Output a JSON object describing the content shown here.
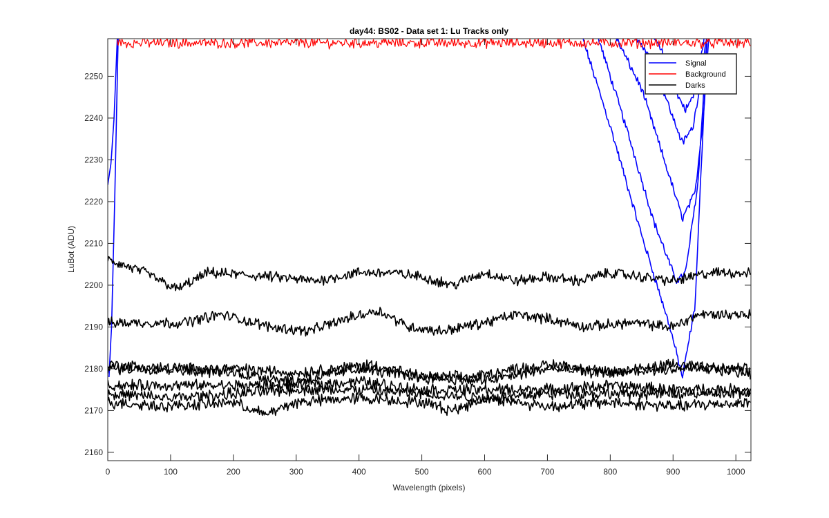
{
  "chart_data": {
    "type": "line",
    "title": "day44: BS02 - Data set 1: Lu Tracks only",
    "xlabel": "Wavelength (pixels)",
    "ylabel": "LuBot (ADU)",
    "xlim": [
      0,
      1024
    ],
    "ylim": [
      2158,
      2259
    ],
    "xticks": [
      0,
      100,
      200,
      300,
      400,
      500,
      600,
      700,
      800,
      900,
      1000
    ],
    "yticks": [
      2160,
      2170,
      2180,
      2190,
      2200,
      2210,
      2220,
      2230,
      2240,
      2250
    ],
    "grid": false,
    "legend_position": "top-right",
    "legend": [
      {
        "name": "Signal",
        "color": "#0000ff"
      },
      {
        "name": "Background",
        "color": "#ff0000"
      },
      {
        "name": "Darks",
        "color": "#000000"
      }
    ],
    "series": [
      {
        "group": "Signal",
        "color": "#0000ff",
        "shape": "spike",
        "points": [
          [
            0,
            2224
          ],
          [
            5,
            2229
          ],
          [
            10,
            2240
          ],
          [
            16,
            2262
          ]
        ]
      },
      {
        "group": "Signal",
        "color": "#0000ff",
        "shape": "spike",
        "points": [
          [
            2,
            2178
          ],
          [
            6,
            2190
          ],
          [
            11,
            2220
          ],
          [
            17,
            2262
          ]
        ]
      },
      {
        "group": "Signal",
        "color": "#0000ff",
        "shape": "valley",
        "points": [
          [
            750,
            2262
          ],
          [
            800,
            2238
          ],
          [
            850,
            2212
          ],
          [
            895,
            2190
          ],
          [
            915,
            2178
          ],
          [
            935,
            2195
          ],
          [
            955,
            2262
          ]
        ]
      },
      {
        "group": "Signal",
        "color": "#0000ff",
        "shape": "valley",
        "points": [
          [
            775,
            2262
          ],
          [
            825,
            2238
          ],
          [
            870,
            2215
          ],
          [
            905,
            2201
          ],
          [
            920,
            2203
          ],
          [
            940,
            2225
          ],
          [
            955,
            2262
          ]
        ]
      },
      {
        "group": "Signal",
        "color": "#0000ff",
        "shape": "valley",
        "points": [
          [
            800,
            2262
          ],
          [
            850,
            2247
          ],
          [
            890,
            2228
          ],
          [
            915,
            2216
          ],
          [
            935,
            2222
          ],
          [
            948,
            2240
          ],
          [
            958,
            2262
          ]
        ]
      },
      {
        "group": "Signal",
        "color": "#0000ff",
        "shape": "valley",
        "points": [
          [
            830,
            2262
          ],
          [
            870,
            2253
          ],
          [
            900,
            2240
          ],
          [
            915,
            2234
          ],
          [
            932,
            2238
          ],
          [
            945,
            2250
          ],
          [
            955,
            2262
          ]
        ]
      },
      {
        "group": "Signal",
        "color": "#0000ff",
        "shape": "valley",
        "points": [
          [
            860,
            2262
          ],
          [
            885,
            2255
          ],
          [
            905,
            2246
          ],
          [
            920,
            2242
          ],
          [
            935,
            2246
          ],
          [
            945,
            2255
          ],
          [
            952,
            2262
          ]
        ]
      },
      {
        "group": "Background",
        "color": "#ff0000",
        "shape": "flat",
        "points": [
          [
            15,
            2258
          ],
          [
            1024,
            2258
          ]
        ],
        "noise": 1.0
      },
      {
        "group": "Darks",
        "color": "#000000",
        "shape": "flat",
        "points": [
          [
            0,
            2206
          ],
          [
            60,
            2203
          ],
          [
            110,
            2199
          ],
          [
            160,
            2203
          ],
          [
            260,
            2202
          ],
          [
            330,
            2201
          ],
          [
            400,
            2203
          ],
          [
            450,
            2203
          ],
          [
            500,
            2202
          ],
          [
            550,
            2200
          ],
          [
            600,
            2203
          ],
          [
            650,
            2201
          ],
          [
            700,
            2202
          ],
          [
            750,
            2201
          ],
          [
            800,
            2203
          ],
          [
            900,
            2201
          ],
          [
            960,
            2203
          ],
          [
            1024,
            2203
          ]
        ],
        "noise": 1.0
      },
      {
        "group": "Darks",
        "color": "#000000",
        "shape": "flat",
        "points": [
          [
            0,
            2191
          ],
          [
            60,
            2191
          ],
          [
            120,
            2191
          ],
          [
            180,
            2193
          ],
          [
            260,
            2190
          ],
          [
            320,
            2189
          ],
          [
            380,
            2192
          ],
          [
            430,
            2194
          ],
          [
            480,
            2190
          ],
          [
            530,
            2189
          ],
          [
            600,
            2191
          ],
          [
            650,
            2193
          ],
          [
            700,
            2192
          ],
          [
            760,
            2190
          ],
          [
            830,
            2191
          ],
          [
            900,
            2190
          ],
          [
            940,
            2193
          ],
          [
            1024,
            2193
          ]
        ],
        "noise": 1.0
      },
      {
        "group": "Darks",
        "color": "#000000",
        "shape": "flat",
        "points": [
          [
            0,
            2181
          ],
          [
            100,
            2180
          ],
          [
            200,
            2180
          ],
          [
            300,
            2179
          ],
          [
            420,
            2181
          ],
          [
            500,
            2178
          ],
          [
            580,
            2178
          ],
          [
            650,
            2180
          ],
          [
            720,
            2181
          ],
          [
            800,
            2179
          ],
          [
            900,
            2180
          ],
          [
            1024,
            2180
          ]
        ],
        "noise": 1.1
      },
      {
        "group": "Darks",
        "color": "#000000",
        "shape": "flat",
        "points": [
          [
            0,
            2180
          ],
          [
            100,
            2180
          ],
          [
            200,
            2179
          ],
          [
            300,
            2177
          ],
          [
            400,
            2180
          ],
          [
            500,
            2178
          ],
          [
            600,
            2177
          ],
          [
            700,
            2180
          ],
          [
            800,
            2179
          ],
          [
            900,
            2181
          ],
          [
            1024,
            2179
          ]
        ],
        "noise": 1.1
      },
      {
        "group": "Darks",
        "color": "#000000",
        "shape": "flat",
        "points": [
          [
            0,
            2176
          ],
          [
            100,
            2176
          ],
          [
            200,
            2176
          ],
          [
            300,
            2176
          ],
          [
            400,
            2177
          ],
          [
            500,
            2175
          ],
          [
            600,
            2175
          ],
          [
            700,
            2175
          ],
          [
            800,
            2176
          ],
          [
            900,
            2175
          ],
          [
            1024,
            2175
          ]
        ],
        "noise": 1.1
      },
      {
        "group": "Darks",
        "color": "#000000",
        "shape": "flat",
        "points": [
          [
            0,
            2174
          ],
          [
            100,
            2173
          ],
          [
            200,
            2174
          ],
          [
            300,
            2175
          ],
          [
            400,
            2175
          ],
          [
            500,
            2174
          ],
          [
            600,
            2173
          ],
          [
            700,
            2174
          ],
          [
            800,
            2174
          ],
          [
            900,
            2174
          ],
          [
            1024,
            2174
          ]
        ],
        "noise": 1.1
      },
      {
        "group": "Darks",
        "color": "#000000",
        "shape": "flat",
        "points": [
          [
            0,
            2172
          ],
          [
            100,
            2171
          ],
          [
            200,
            2172
          ],
          [
            250,
            2169
          ],
          [
            300,
            2172
          ],
          [
            400,
            2173
          ],
          [
            500,
            2172
          ],
          [
            550,
            2170
          ],
          [
            600,
            2173
          ],
          [
            700,
            2171
          ],
          [
            800,
            2172
          ],
          [
            900,
            2171
          ],
          [
            1024,
            2172
          ]
        ],
        "noise": 1.1
      }
    ]
  }
}
